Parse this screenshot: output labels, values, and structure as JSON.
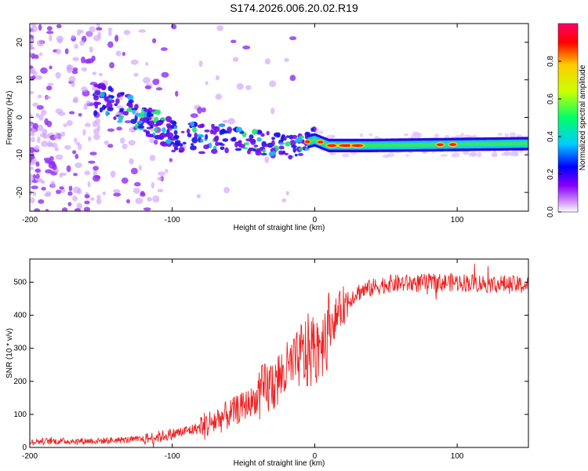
{
  "figure_title": "S174.2026.006.20.02.R19",
  "colors": {
    "snr_line": "#ee2222",
    "frame": "#000000",
    "background": "#ffffff"
  },
  "chart_data": [
    {
      "type": "heatmap",
      "title": "S174.2026.006.20.02.R19",
      "xlabel": "Height of straight line (km)",
      "ylabel": "Frequency (Hz)",
      "xlim": [
        -200,
        150
      ],
      "ylim": [
        -25,
        25
      ],
      "xticks": [
        -200,
        -100,
        0,
        100
      ],
      "yticks": [
        -20,
        -10,
        0,
        10,
        20
      ],
      "colorbar": {
        "label": "Normalized spectral amplitude",
        "range": [
          0.0,
          1.0
        ],
        "ticks": [
          "0.0",
          "0.2",
          "0.4",
          "0.6",
          "0.8"
        ],
        "colormap": [
          "#ffffff",
          "#cc88ff",
          "#8800ff",
          "#0000ff",
          "#00ccff",
          "#00ff66",
          "#ccff00",
          "#ffcc00",
          "#ff0000",
          "#ff0066"
        ]
      },
      "ridge": {
        "description_points": [
          {
            "x": -150,
            "y": 5
          },
          {
            "x": -120,
            "y": 0
          },
          {
            "x": -100,
            "y": -5
          },
          {
            "x": -50,
            "y": -6
          },
          {
            "x": -20,
            "y": -8
          },
          {
            "x": 0,
            "y": -6
          },
          {
            "x": 10,
            "y": -7.5
          },
          {
            "x": 40,
            "y": -7.5
          },
          {
            "x": 150,
            "y": -7
          }
        ]
      }
    },
    {
      "type": "line",
      "xlabel": "Height of straight line (km)",
      "ylabel": "SNR (10 * v/v)",
      "xlim": [
        -200,
        150
      ],
      "ylim": [
        0,
        570
      ],
      "xticks": [
        -200,
        -100,
        0,
        100
      ],
      "yticks": [
        0,
        100,
        200,
        300,
        400,
        500
      ],
      "series": [
        {
          "name": "SNR",
          "trend_x": [
            -200,
            -150,
            -120,
            -100,
            -80,
            -60,
            -40,
            -20,
            -10,
            0,
            10,
            20,
            30,
            50,
            100,
            150
          ],
          "trend_y": [
            18,
            20,
            25,
            40,
            60,
            100,
            150,
            230,
            270,
            300,
            360,
            430,
            470,
            495,
            500,
            490
          ]
        }
      ]
    }
  ]
}
